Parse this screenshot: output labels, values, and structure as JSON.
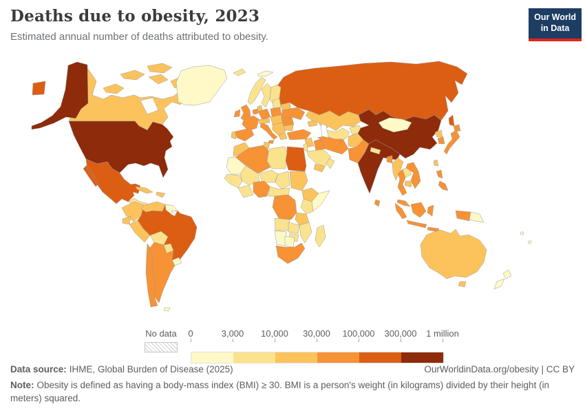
{
  "header": {
    "title": "Deaths due to obesity, 2023",
    "subtitle": "Estimated annual number of deaths attributed to obesity."
  },
  "logo": {
    "line1": "Our World",
    "line2": "in Data",
    "bg": "#1d3d63",
    "accent": "#e0261c"
  },
  "legend": {
    "no_data_label": "No data",
    "tick_labels": [
      "0",
      "3,000",
      "10,000",
      "30,000",
      "100,000",
      "300,000",
      "1 million"
    ]
  },
  "footer": {
    "source_label": "Data source:",
    "source_text": "IHME, Global Burden of Disease (2025)",
    "link_text": "OurWorldinData.org/obesity | CC BY",
    "note_label": "Note:",
    "note_text": "Obesity is defined as having a body-mass index (BMI) ≥ 30. BMI is a person's weight (in kilograms) divided by their height (in meters) squared."
  },
  "chart_data": {
    "type": "heatmap",
    "subtype": "choropleth-world-map",
    "title": "Deaths due to obesity, 2023",
    "unit": "deaths per year",
    "bin_thresholds": [
      0,
      3000,
      10000,
      30000,
      100000,
      300000,
      1000000
    ],
    "bin_labels": [
      "0–3,000",
      "3,000–10,000",
      "10,000–30,000",
      "30,000–100,000",
      "100,000–300,000",
      "300,000–1 million"
    ],
    "bin_colors": [
      "#fef9c7",
      "#fbe38e",
      "#fcc35c",
      "#f79235",
      "#dc5e13",
      "#8d2b0a"
    ],
    "no_data_style": "hatch",
    "countries": {
      "united-states": 5,
      "china": 5,
      "india": 5,
      "russia": 4,
      "russia-east": 4,
      "sakhalin": 4,
      "brazil": 4,
      "mexico": 4,
      "egypt": 4,
      "canada": 2,
      "greenland": 0,
      "iceland": 1,
      "svalbard": 0,
      "central-america": 1,
      "cuba": 2,
      "hispaniola": 2,
      "colombia": 2,
      "venezuela": 2,
      "guyana-suriname": 0,
      "french-guiana": "no-data",
      "ecuador": 2,
      "peru": 2,
      "bolivia": 1,
      "paraguay": 1,
      "uruguay": 0,
      "argentina": 3,
      "chile": 3,
      "falkland-islands": 0,
      "norway": 1,
      "sweden": 1,
      "finland": 1,
      "denmark": 2,
      "united-kingdom": 3,
      "ireland": 3,
      "benelux": 3,
      "germany": 3,
      "france": 3,
      "spain": 3,
      "portugal": 2,
      "italy": 3,
      "switzerland-austria": 2,
      "poland": 3,
      "czechia-hungary": 2,
      "balkans": 2,
      "greece": 2,
      "romania": 3,
      "bulgaria": 2,
      "baltics": 1,
      "belarus": 2,
      "ukraine": 3,
      "turkey": 3,
      "caucasus": 2,
      "syria": 2,
      "israel-jordan": 1,
      "iraq": 3,
      "saudi-arabia": 1,
      "yemen": 2,
      "oman": 1,
      "iran": 3,
      "afghanistan": 2,
      "pakistan": 3,
      "kazakhstan": 2,
      "uzbekistan-turkmenistan": 1,
      "kyrgyzstan-tajikistan": 1,
      "mongolia": 0,
      "nepal": 1,
      "bangladesh": 3,
      "sri-lanka": 3,
      "myanmar": 2,
      "thailand": 3,
      "laos": 1,
      "vietnam": 3,
      "cambodia": 2,
      "malaysia": 3,
      "north-korea": 2,
      "south-korea": 3,
      "japan": 3,
      "taiwan": 2,
      "philippines": 3,
      "indonesia": 3,
      "papua-new-guinea": 0,
      "australia": 2,
      "new-zealand": 0,
      "fiji": 0,
      "morocco": 2,
      "algeria": 3,
      "tunisia": 2,
      "libya": 1,
      "mauritania": 0,
      "mali": 1,
      "niger": 1,
      "chad": 1,
      "sudan": 2,
      "senegal-guinea": 1,
      "ghana-ivory-coast": 1,
      "nigeria": 3,
      "cameroon-car": 1,
      "ethiopia": 2,
      "somalia": 0,
      "kenya": 1,
      "drc": 3,
      "tanzania": 2,
      "angola": 1,
      "zambia": 1,
      "mozambique": 1,
      "zimbabwe": 1,
      "namibia": 0,
      "botswana": 0,
      "south-africa": 3,
      "madagascar": 1
    }
  }
}
